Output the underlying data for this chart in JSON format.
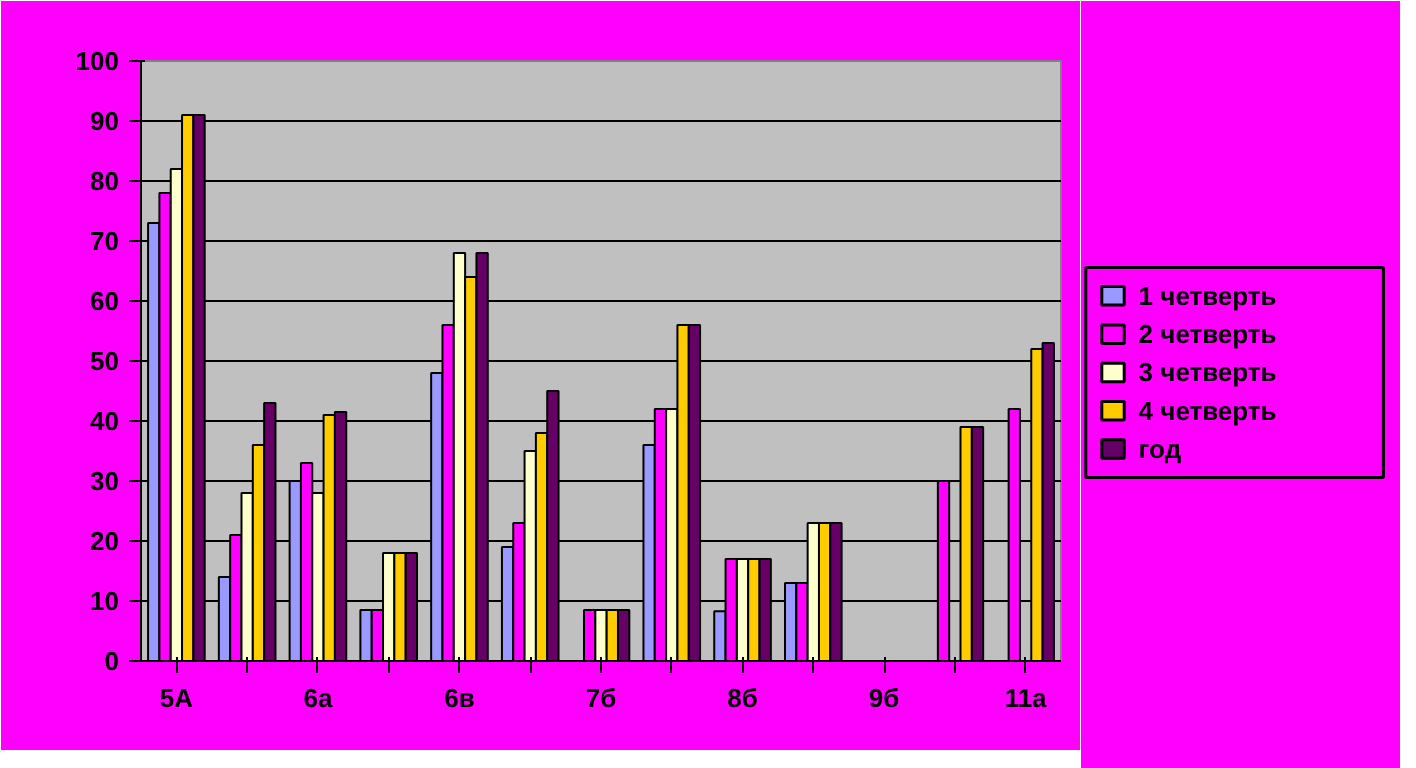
{
  "chart_data": {
    "type": "bar",
    "categories": [
      "5А",
      null,
      "6а",
      null,
      "6в",
      null,
      "7б",
      null,
      "8б",
      null,
      "9б",
      null,
      "11а"
    ],
    "series": [
      {
        "name": "1 четверть",
        "color": "#9999ff",
        "values": [
          73,
          14,
          30,
          8.5,
          48,
          19,
          0,
          36,
          8.3,
          13,
          0,
          0,
          0
        ]
      },
      {
        "name": "2 четверть",
        "color": "#ff00ff",
        "values": [
          78,
          21,
          33,
          8.5,
          56,
          23,
          8.5,
          42,
          17,
          13,
          0,
          30,
          42
        ]
      },
      {
        "name": "3 четверть",
        "color": "#ffffcc",
        "values": [
          82,
          28,
          28,
          18,
          68,
          35,
          8.5,
          42,
          17,
          23,
          0,
          0,
          0
        ]
      },
      {
        "name": "4 четверть",
        "color": "#ffcc00",
        "values": [
          91,
          36,
          41,
          18,
          64,
          38,
          8.5,
          56,
          17,
          23,
          0,
          39,
          52
        ]
      },
      {
        "name": "год",
        "color": "#660066",
        "values": [
          91,
          43,
          41.5,
          18,
          68,
          45,
          8.5,
          56,
          17,
          23,
          0,
          39,
          53
        ]
      }
    ],
    "ylim": [
      0,
      100
    ],
    "yticks": [
      0,
      10,
      20,
      30,
      40,
      50,
      60,
      70,
      80,
      90,
      100
    ],
    "grid": "y",
    "legend": "right"
  }
}
